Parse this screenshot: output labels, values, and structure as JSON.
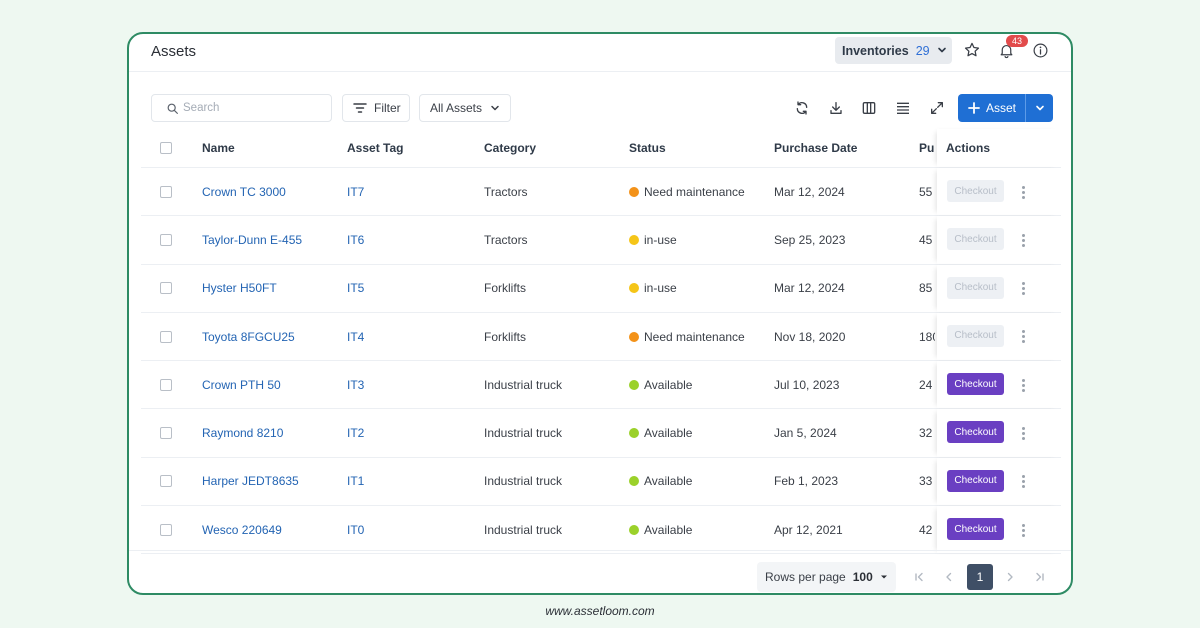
{
  "header": {
    "title": "Assets",
    "inventories_label": "Inventories",
    "inventories_count": "29",
    "notification_count": "43"
  },
  "toolbar": {
    "search_placeholder": "Search",
    "filter_label": "Filter",
    "view_select": "All Assets",
    "add_label": "Asset"
  },
  "columns": {
    "name": "Name",
    "asset_tag": "Asset Tag",
    "category": "Category",
    "status": "Status",
    "purchase_date": "Purchase Date",
    "purchase_truncated": "Pu",
    "actions": "Actions"
  },
  "status_colors": {
    "Need maintenance": "#f39219",
    "in-use": "#f5c518",
    "Available": "#9bd12a"
  },
  "checkout_label": "Checkout",
  "rows": [
    {
      "name": "Crown TC 3000",
      "tag": "IT7",
      "category": "Tractors",
      "status": "Need maintenance",
      "date": "Mar 12, 2024",
      "price": "55",
      "checkout_enabled": false
    },
    {
      "name": "Taylor-Dunn E-455",
      "tag": "IT6",
      "category": "Tractors",
      "status": "in-use",
      "date": "Sep 25, 2023",
      "price": "45",
      "checkout_enabled": false
    },
    {
      "name": "Hyster H50FT",
      "tag": "IT5",
      "category": "Forklifts",
      "status": "in-use",
      "date": "Mar 12, 2024",
      "price": "85",
      "checkout_enabled": false
    },
    {
      "name": "Toyota 8FGCU25",
      "tag": "IT4",
      "category": "Forklifts",
      "status": "Need maintenance",
      "date": "Nov 18, 2020",
      "price": "180",
      "checkout_enabled": false
    },
    {
      "name": "Crown PTH 50",
      "tag": "IT3",
      "category": "Industrial truck",
      "status": "Available",
      "date": "Jul 10, 2023",
      "price": "24",
      "checkout_enabled": true
    },
    {
      "name": "Raymond 8210",
      "tag": "IT2",
      "category": "Industrial truck",
      "status": "Available",
      "date": "Jan 5, 2024",
      "price": "32",
      "checkout_enabled": true
    },
    {
      "name": "Harper JEDT8635",
      "tag": "IT1",
      "category": "Industrial truck",
      "status": "Available",
      "date": "Feb 1, 2023",
      "price": "33",
      "checkout_enabled": true
    },
    {
      "name": "Wesco 220649",
      "tag": "IT0",
      "category": "Industrial truck",
      "status": "Available",
      "date": "Apr 12, 2021",
      "price": "42",
      "checkout_enabled": true
    }
  ],
  "pagination": {
    "rows_per_page_label": "Rows per page",
    "rows_per_page_value": "100",
    "current_page": "1"
  },
  "site_url": "www.assetloom.com"
}
